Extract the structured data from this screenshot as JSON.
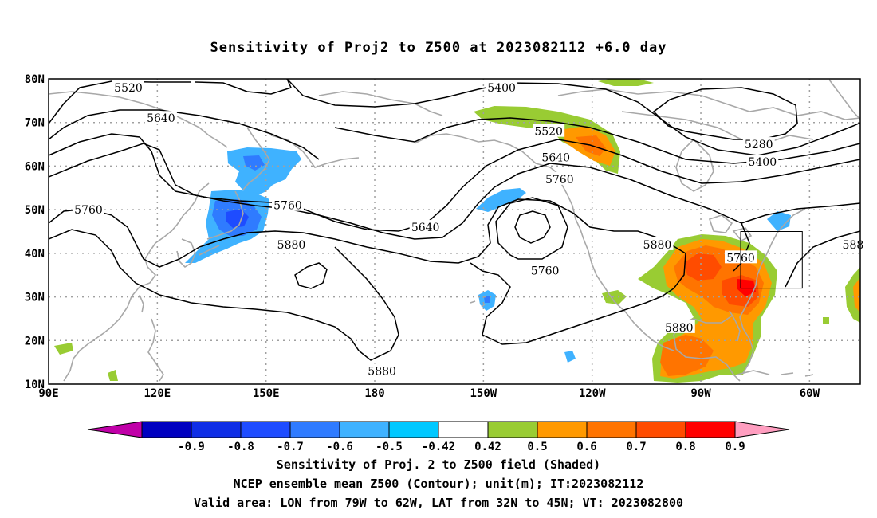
{
  "title": "Sensitivity of Proj2 to Z500 at 2023082112 +6.0 day",
  "axes": {
    "lat_labels": [
      "80N",
      "70N",
      "60N",
      "50N",
      "40N",
      "30N",
      "20N",
      "10N"
    ],
    "lon_labels": [
      "90E",
      "120E",
      "150E",
      "180",
      "150W",
      "120W",
      "90W",
      "60W"
    ],
    "lat_values": [
      80,
      70,
      60,
      50,
      40,
      30,
      20,
      10
    ],
    "lon_values": [
      90,
      120,
      150,
      180,
      210,
      240,
      270,
      300
    ],
    "lon_range": [
      90,
      314
    ],
    "lat_range": [
      10,
      80
    ],
    "grid": "dotted"
  },
  "contour_labels": [
    {
      "text": "5520",
      "lon": 112,
      "lat": 78
    },
    {
      "text": "5640",
      "lon": 121,
      "lat": 71
    },
    {
      "text": "5760",
      "lon": 101,
      "lat": 50
    },
    {
      "text": "5760",
      "lon": 156,
      "lat": 51
    },
    {
      "text": "5880",
      "lon": 157,
      "lat": 42
    },
    {
      "text": "5640",
      "lon": 194,
      "lat": 46
    },
    {
      "text": "5400",
      "lon": 215,
      "lat": 78
    },
    {
      "text": "5520",
      "lon": 228,
      "lat": 68
    },
    {
      "text": "5640",
      "lon": 230,
      "lat": 62
    },
    {
      "text": "5760",
      "lon": 231,
      "lat": 57
    },
    {
      "text": "5760",
      "lon": 227,
      "lat": 36
    },
    {
      "text": "5880",
      "lon": 258,
      "lat": 42
    },
    {
      "text": "5880",
      "lon": 264,
      "lat": 23
    },
    {
      "text": "5880",
      "lon": 182,
      "lat": 13
    },
    {
      "text": "5760",
      "lon": 281,
      "lat": 39
    },
    {
      "text": "5280",
      "lon": 286,
      "lat": 65
    },
    {
      "text": "5400",
      "lon": 287,
      "lat": 61
    },
    {
      "text": "588",
      "lon": 312,
      "lat": 42
    }
  ],
  "colorbar": {
    "labels": [
      "-0.9",
      "-0.8",
      "-0.7",
      "-0.6",
      "-0.5",
      "-0.42",
      "0.42",
      "0.5",
      "0.6",
      "0.7",
      "0.8",
      "0.9"
    ],
    "colors": [
      "#c000a8",
      "#0000c0",
      "#0f2ee6",
      "#1e4cff",
      "#2f7bff",
      "#3fb2ff",
      "#00c8ff",
      "#ffffff",
      "#99cc33",
      "#ff9900",
      "#ff7400",
      "#ff4c00",
      "#ff0000",
      "#ff9ec0"
    ]
  },
  "captions": [
    "Sensitivity of Proj. 2 to Z500 field (Shaded)",
    "NCEP ensemble mean Z500 (Contour); unit(m); IT:2023082112",
    "Valid area: LON from 79W to 62W, LAT from 32N to 45N; VT: 2023082800"
  ],
  "valid_area": {
    "lon_from": 281,
    "lon_to": 298,
    "lat_from": 32,
    "lat_to": 45
  }
}
